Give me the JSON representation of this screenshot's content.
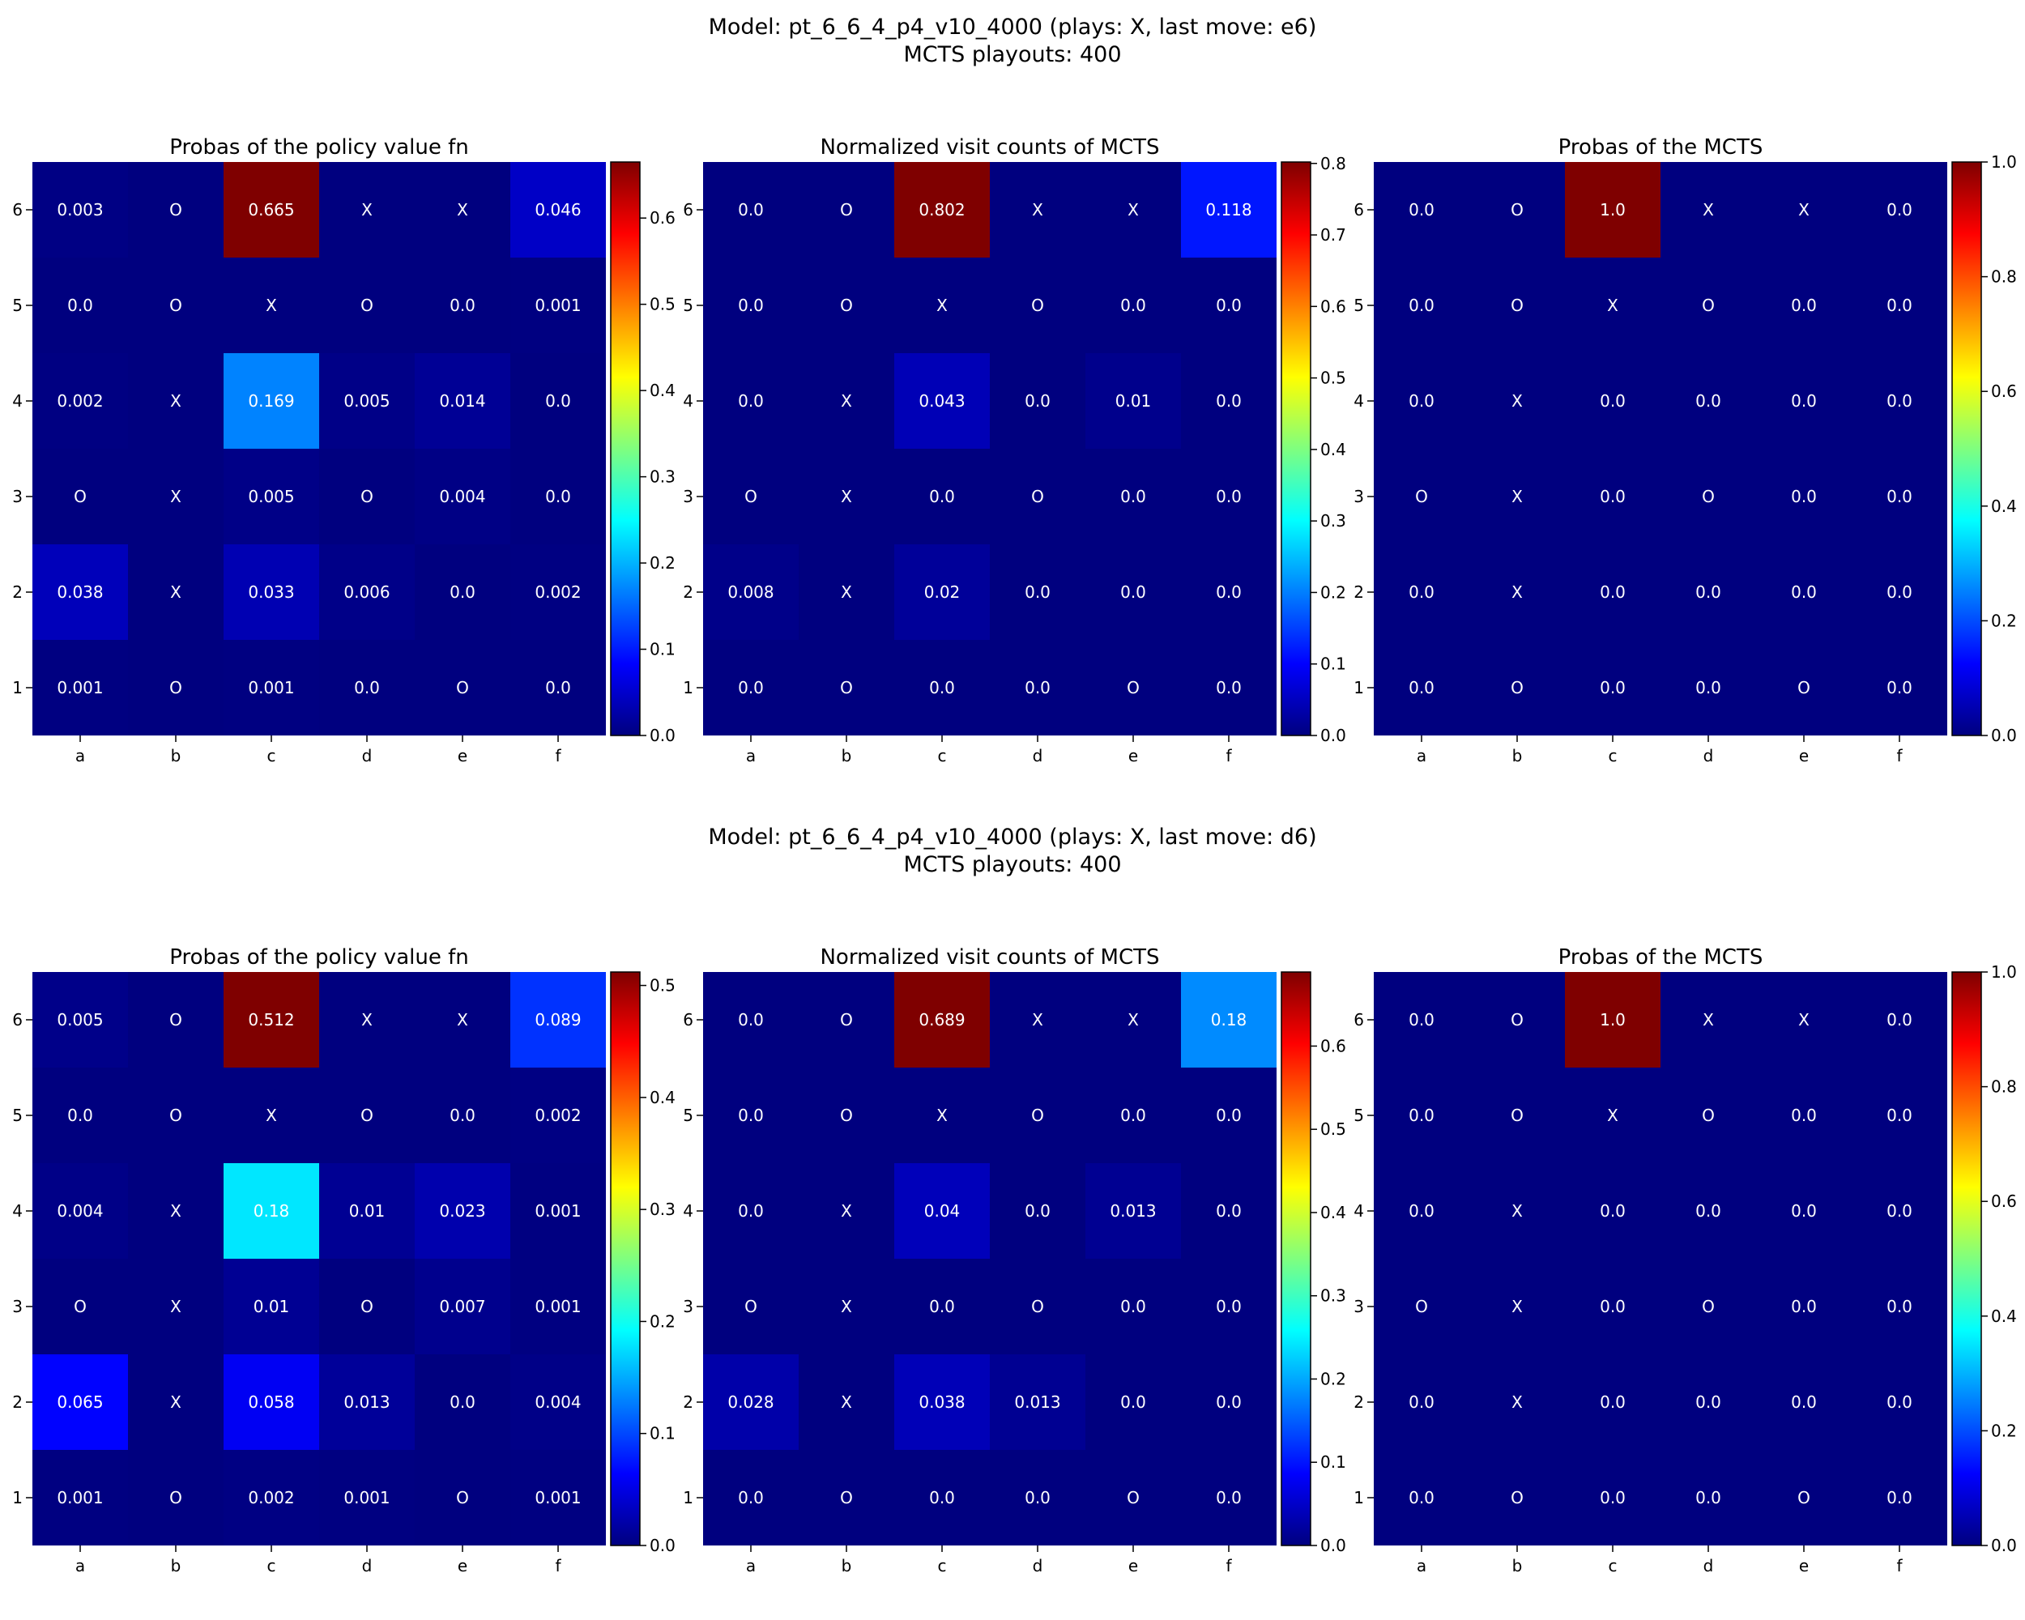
{
  "colorbar_stops": [
    "#00007f",
    "#0000ff",
    "#007fff",
    "#00ffff",
    "#7fff7f",
    "#ffff00",
    "#ff7f00",
    "#ff0000",
    "#7f0000"
  ],
  "chart_data": [
    {
      "type": "heatmap-group",
      "suptitle": "Model: pt_6_6_4_p4_v10_4000 (plays: X, last move: e6)",
      "subtitle": "MCTS playouts: 400",
      "columns": [
        "a",
        "b",
        "c",
        "d",
        "e",
        "f"
      ],
      "rows": [
        "6",
        "5",
        "4",
        "3",
        "2",
        "1"
      ],
      "panels": [
        {
          "title": "Probas of the policy value fn",
          "vmax": 0.665,
          "colorbar_ticks": [
            "0.0",
            "0.1",
            "0.2",
            "0.3",
            "0.4",
            "0.5",
            "0.6"
          ],
          "cells": [
            [
              "0.003",
              "O",
              "0.665",
              "X",
              "X",
              "0.046"
            ],
            [
              "0.0",
              "O",
              "X",
              "O",
              "0.0",
              "0.001"
            ],
            [
              "0.002",
              "X",
              "0.169",
              "0.005",
              "0.014",
              "0.0"
            ],
            [
              "O",
              "X",
              "0.005",
              "O",
              "0.004",
              "0.0"
            ],
            [
              "0.038",
              "X",
              "0.033",
              "0.006",
              "0.0",
              "0.002"
            ],
            [
              "0.001",
              "O",
              "0.001",
              "0.0",
              "O",
              "0.0"
            ]
          ]
        },
        {
          "title": "Normalized visit counts of MCTS",
          "vmax": 0.802,
          "colorbar_ticks": [
            "0.0",
            "0.1",
            "0.2",
            "0.3",
            "0.4",
            "0.5",
            "0.6",
            "0.7",
            "0.8"
          ],
          "cells": [
            [
              "0.0",
              "O",
              "0.802",
              "X",
              "X",
              "0.118"
            ],
            [
              "0.0",
              "O",
              "X",
              "O",
              "0.0",
              "0.0"
            ],
            [
              "0.0",
              "X",
              "0.043",
              "0.0",
              "0.01",
              "0.0"
            ],
            [
              "O",
              "X",
              "0.0",
              "O",
              "0.0",
              "0.0"
            ],
            [
              "0.008",
              "X",
              "0.02",
              "0.0",
              "0.0",
              "0.0"
            ],
            [
              "0.0",
              "O",
              "0.0",
              "0.0",
              "O",
              "0.0"
            ]
          ]
        },
        {
          "title": "Probas of the MCTS",
          "vmax": 1.0,
          "colorbar_ticks": [
            "0.0",
            "0.2",
            "0.4",
            "0.6",
            "0.8",
            "1.0"
          ],
          "cells": [
            [
              "0.0",
              "O",
              "1.0",
              "X",
              "X",
              "0.0"
            ],
            [
              "0.0",
              "O",
              "X",
              "O",
              "0.0",
              "0.0"
            ],
            [
              "0.0",
              "X",
              "0.0",
              "0.0",
              "0.0",
              "0.0"
            ],
            [
              "O",
              "X",
              "0.0",
              "O",
              "0.0",
              "0.0"
            ],
            [
              "0.0",
              "X",
              "0.0",
              "0.0",
              "0.0",
              "0.0"
            ],
            [
              "0.0",
              "O",
              "0.0",
              "0.0",
              "O",
              "0.0"
            ]
          ]
        }
      ]
    },
    {
      "type": "heatmap-group",
      "suptitle": "Model: pt_6_6_4_p4_v10_4000 (plays: X, last move: d6)",
      "subtitle": "MCTS playouts: 400",
      "columns": [
        "a",
        "b",
        "c",
        "d",
        "e",
        "f"
      ],
      "rows": [
        "6",
        "5",
        "4",
        "3",
        "2",
        "1"
      ],
      "panels": [
        {
          "title": "Probas of the policy value fn",
          "vmax": 0.512,
          "colorbar_ticks": [
            "0.0",
            "0.1",
            "0.2",
            "0.3",
            "0.4",
            "0.5"
          ],
          "cells": [
            [
              "0.005",
              "O",
              "0.512",
              "X",
              "X",
              "0.089"
            ],
            [
              "0.0",
              "O",
              "X",
              "O",
              "0.0",
              "0.002"
            ],
            [
              "0.004",
              "X",
              "0.18",
              "0.01",
              "0.023",
              "0.001"
            ],
            [
              "O",
              "X",
              "0.01",
              "O",
              "0.007",
              "0.001"
            ],
            [
              "0.065",
              "X",
              "0.058",
              "0.013",
              "0.0",
              "0.004"
            ],
            [
              "0.001",
              "O",
              "0.002",
              "0.001",
              "O",
              "0.001"
            ]
          ]
        },
        {
          "title": "Normalized visit counts of MCTS",
          "vmax": 0.689,
          "colorbar_ticks": [
            "0.0",
            "0.1",
            "0.2",
            "0.3",
            "0.4",
            "0.5",
            "0.6"
          ],
          "cells": [
            [
              "0.0",
              "O",
              "0.689",
              "X",
              "X",
              "0.18"
            ],
            [
              "0.0",
              "O",
              "X",
              "O",
              "0.0",
              "0.0"
            ],
            [
              "0.0",
              "X",
              "0.04",
              "0.0",
              "0.013",
              "0.0"
            ],
            [
              "O",
              "X",
              "0.0",
              "O",
              "0.0",
              "0.0"
            ],
            [
              "0.028",
              "X",
              "0.038",
              "0.013",
              "0.0",
              "0.0"
            ],
            [
              "0.0",
              "O",
              "0.0",
              "0.0",
              "O",
              "0.0"
            ]
          ]
        },
        {
          "title": "Probas of the MCTS",
          "vmax": 1.0,
          "colorbar_ticks": [
            "0.0",
            "0.2",
            "0.4",
            "0.6",
            "0.8",
            "1.0"
          ],
          "cells": [
            [
              "0.0",
              "O",
              "1.0",
              "X",
              "X",
              "0.0"
            ],
            [
              "0.0",
              "O",
              "X",
              "O",
              "0.0",
              "0.0"
            ],
            [
              "0.0",
              "X",
              "0.0",
              "0.0",
              "0.0",
              "0.0"
            ],
            [
              "O",
              "X",
              "0.0",
              "O",
              "0.0",
              "0.0"
            ],
            [
              "0.0",
              "X",
              "0.0",
              "0.0",
              "0.0",
              "0.0"
            ],
            [
              "0.0",
              "O",
              "0.0",
              "0.0",
              "O",
              "0.0"
            ]
          ]
        }
      ]
    }
  ]
}
